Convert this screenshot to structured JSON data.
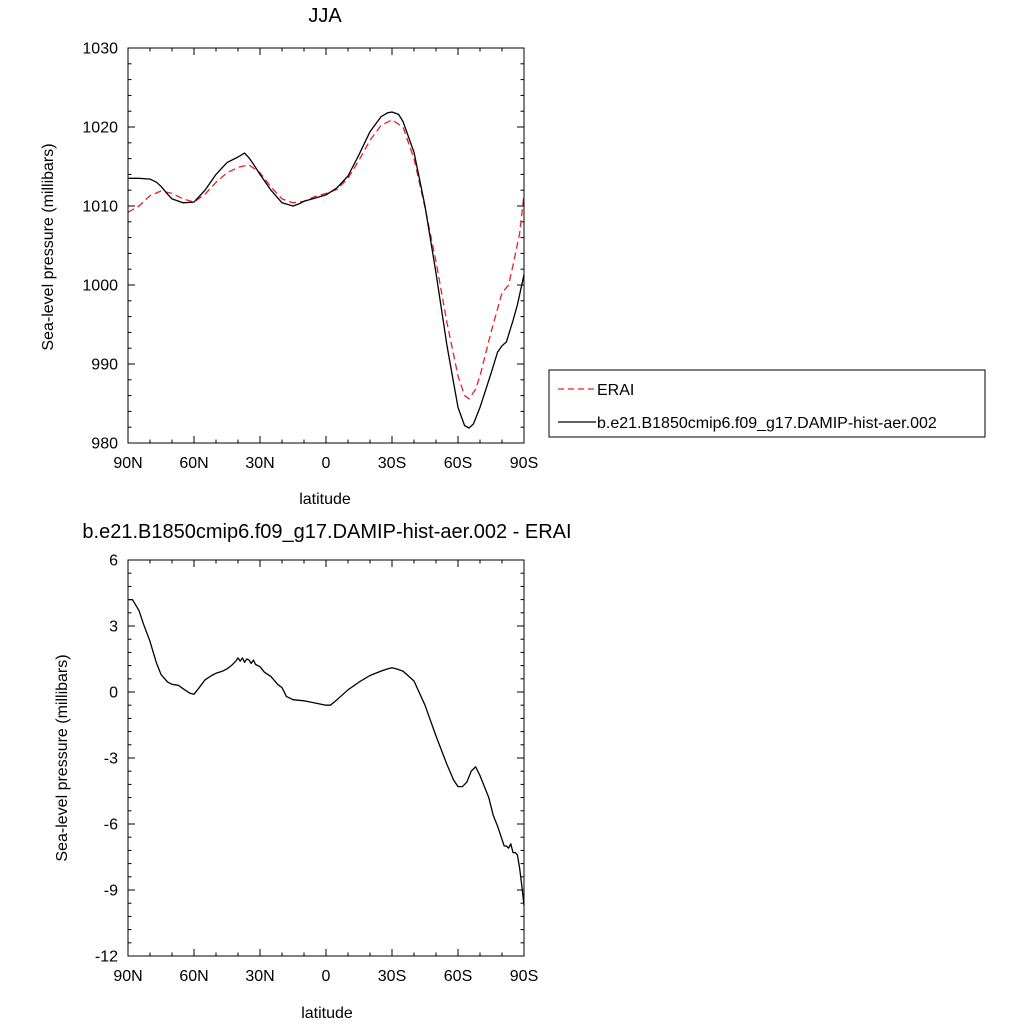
{
  "chart_data": [
    {
      "type": "line",
      "title": "JJA",
      "xlabel": "latitude",
      "ylabel": "Sea-level pressure (millibars)",
      "xlim": [
        90,
        -90
      ],
      "ylim": [
        980,
        1030
      ],
      "x_ticks": [
        90,
        60,
        30,
        0,
        -30,
        -60,
        -90
      ],
      "x_tick_labels": [
        "90N",
        "60N",
        "30N",
        "0",
        "30S",
        "60S",
        "90S"
      ],
      "y_ticks": [
        980,
        990,
        1000,
        1010,
        1020,
        1030
      ],
      "y_tick_labels": [
        "980",
        "990",
        "1000",
        "1010",
        "1020",
        "1030"
      ],
      "legend_placement": "right",
      "series": [
        {
          "name": "ERAI",
          "color": "#e8202a",
          "dash": "dashed",
          "x": [
            90,
            85,
            80,
            75,
            70,
            65,
            60,
            55,
            50,
            45,
            40,
            35,
            30,
            25,
            20,
            15,
            10,
            5,
            0,
            -5,
            -10,
            -15,
            -20,
            -25,
            -30,
            -35,
            -40,
            -45,
            -50,
            -55,
            -60,
            -63,
            -65,
            -68,
            -70,
            -75,
            -80,
            -83,
            -85,
            -88,
            -90
          ],
          "values": [
            1009.2,
            1010.0,
            1011.3,
            1011.9,
            1011.6,
            1010.9,
            1010.5,
            1011.5,
            1013.0,
            1014.2,
            1014.9,
            1015.2,
            1014.2,
            1012.4,
            1010.9,
            1010.4,
            1010.6,
            1011.2,
            1011.6,
            1012.1,
            1013.5,
            1015.8,
            1018.3,
            1020.2,
            1020.9,
            1020.0,
            1016.0,
            1009.8,
            1003.0,
            995.2,
            988.5,
            986.0,
            985.6,
            986.8,
            988.5,
            994.0,
            999.0,
            1000.0,
            1002.5,
            1006.5,
            1011.5
          ]
        },
        {
          "name": "b.e21.B1850cmip6.f09_g17.DAMIP-hist-aer.002",
          "color": "#000000",
          "dash": "solid",
          "x": [
            90,
            85,
            80,
            77,
            75,
            72,
            70,
            65,
            60,
            55,
            50,
            45,
            40,
            37,
            35,
            33,
            30,
            25,
            20,
            15,
            12,
            10,
            5,
            0,
            -5,
            -10,
            -15,
            -20,
            -25,
            -28,
            -30,
            -33,
            -35,
            -40,
            -45,
            -50,
            -55,
            -60,
            -63,
            -65,
            -67,
            -70,
            -75,
            -78,
            -80,
            -82,
            -85,
            -87,
            -90
          ],
          "values": [
            1013.5,
            1013.5,
            1013.4,
            1013.0,
            1012.5,
            1011.5,
            1010.9,
            1010.4,
            1010.5,
            1012.0,
            1014.0,
            1015.5,
            1016.2,
            1016.7,
            1016.1,
            1015.3,
            1014.0,
            1012.0,
            1010.4,
            1010.0,
            1010.3,
            1010.6,
            1011.0,
            1011.4,
            1012.3,
            1013.8,
            1016.5,
            1019.4,
            1021.3,
            1021.8,
            1021.9,
            1021.6,
            1020.7,
            1016.8,
            1010.0,
            1001.5,
            992.3,
            984.5,
            982.2,
            981.9,
            982.4,
            984.5,
            988.8,
            991.5,
            992.3,
            992.8,
            995.5,
            997.5,
            1001.3
          ]
        }
      ]
    },
    {
      "type": "line",
      "title": "b.e21.B1850cmip6.f09_g17.DAMIP-hist-aer.002 - ERAI",
      "xlabel": "latitude",
      "ylabel": "Sea-level pressure (millibars)",
      "xlim": [
        90,
        -90
      ],
      "ylim": [
        -12,
        6
      ],
      "x_ticks": [
        90,
        60,
        30,
        0,
        -30,
        -60,
        -90
      ],
      "x_tick_labels": [
        "90N",
        "60N",
        "30N",
        "0",
        "30S",
        "60S",
        "90S"
      ],
      "y_ticks": [
        -12,
        -9,
        -6,
        -3,
        0,
        3,
        6
      ],
      "y_tick_labels": [
        "-12",
        "-9",
        "-6",
        "-3",
        "0",
        "3",
        "6"
      ],
      "series": [
        {
          "color": "#000000",
          "dash": "solid",
          "x": [
            90,
            88,
            85,
            83,
            80,
            77,
            75,
            72,
            70,
            67,
            65,
            62,
            60,
            58,
            55,
            52,
            50,
            47,
            45,
            43,
            41,
            40,
            39,
            38,
            37,
            36,
            35,
            34,
            33,
            32,
            30,
            28,
            25,
            22,
            20,
            18,
            15,
            10,
            5,
            0,
            -2,
            -5,
            -10,
            -15,
            -20,
            -25,
            -28,
            -30,
            -32,
            -35,
            -40,
            -45,
            -50,
            -55,
            -58,
            -60,
            -62,
            -64,
            -66,
            -67,
            -68,
            -70,
            -72,
            -74,
            -76,
            -78,
            -80,
            -81,
            -82,
            -83,
            -84,
            -85,
            -86,
            -87,
            -88,
            -89,
            -90
          ],
          "values": [
            4.2,
            4.2,
            3.7,
            3.1,
            2.3,
            1.3,
            0.8,
            0.45,
            0.35,
            0.3,
            0.15,
            -0.05,
            -0.1,
            0.15,
            0.55,
            0.75,
            0.85,
            0.95,
            1.05,
            1.2,
            1.4,
            1.55,
            1.4,
            1.55,
            1.35,
            1.5,
            1.45,
            1.3,
            1.45,
            1.25,
            1.15,
            0.9,
            0.7,
            0.35,
            0.2,
            -0.2,
            -0.35,
            -0.4,
            -0.5,
            -0.6,
            -0.6,
            -0.35,
            0.1,
            0.45,
            0.75,
            0.95,
            1.05,
            1.1,
            1.05,
            0.95,
            0.5,
            -0.6,
            -2.0,
            -3.3,
            -4.0,
            -4.3,
            -4.3,
            -4.1,
            -3.6,
            -3.5,
            -3.4,
            -3.8,
            -4.3,
            -4.8,
            -5.6,
            -6.1,
            -6.7,
            -7.0,
            -7.0,
            -7.1,
            -6.9,
            -7.3,
            -7.3,
            -7.4,
            -8.0,
            -8.8,
            -9.7
          ]
        }
      ]
    }
  ]
}
